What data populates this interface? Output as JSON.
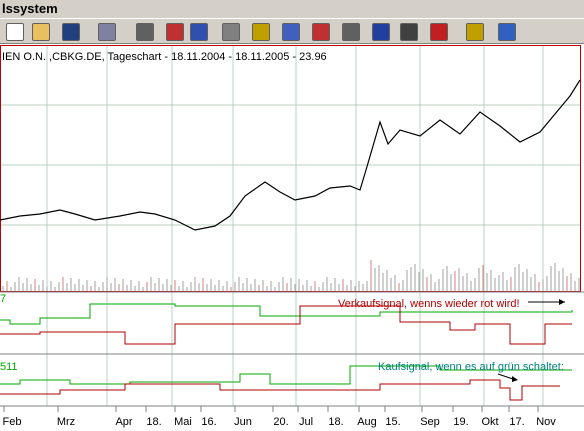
{
  "window": {
    "title": "lssystem"
  },
  "chart": {
    "header": "IEN O.N. ,CBKG.DE, Tageschart - 18.11.2004 - 18.11.2005 - 23.96",
    "indicator_labels": [
      "7",
      "511"
    ],
    "annotations": [
      "Verkaufsignal, wenns wieder rot wird!",
      "Kaufsignal, wenn es auf grün schaltet:"
    ],
    "x_labels": [
      "Feb",
      "Mrz",
      "Apr",
      "18.",
      "Mai",
      "16.",
      "Jun",
      "20.",
      "Jul",
      "18.",
      "Aug",
      "15.",
      "Sep",
      "19.",
      "Okt",
      "17.",
      "Nov"
    ]
  }
}
